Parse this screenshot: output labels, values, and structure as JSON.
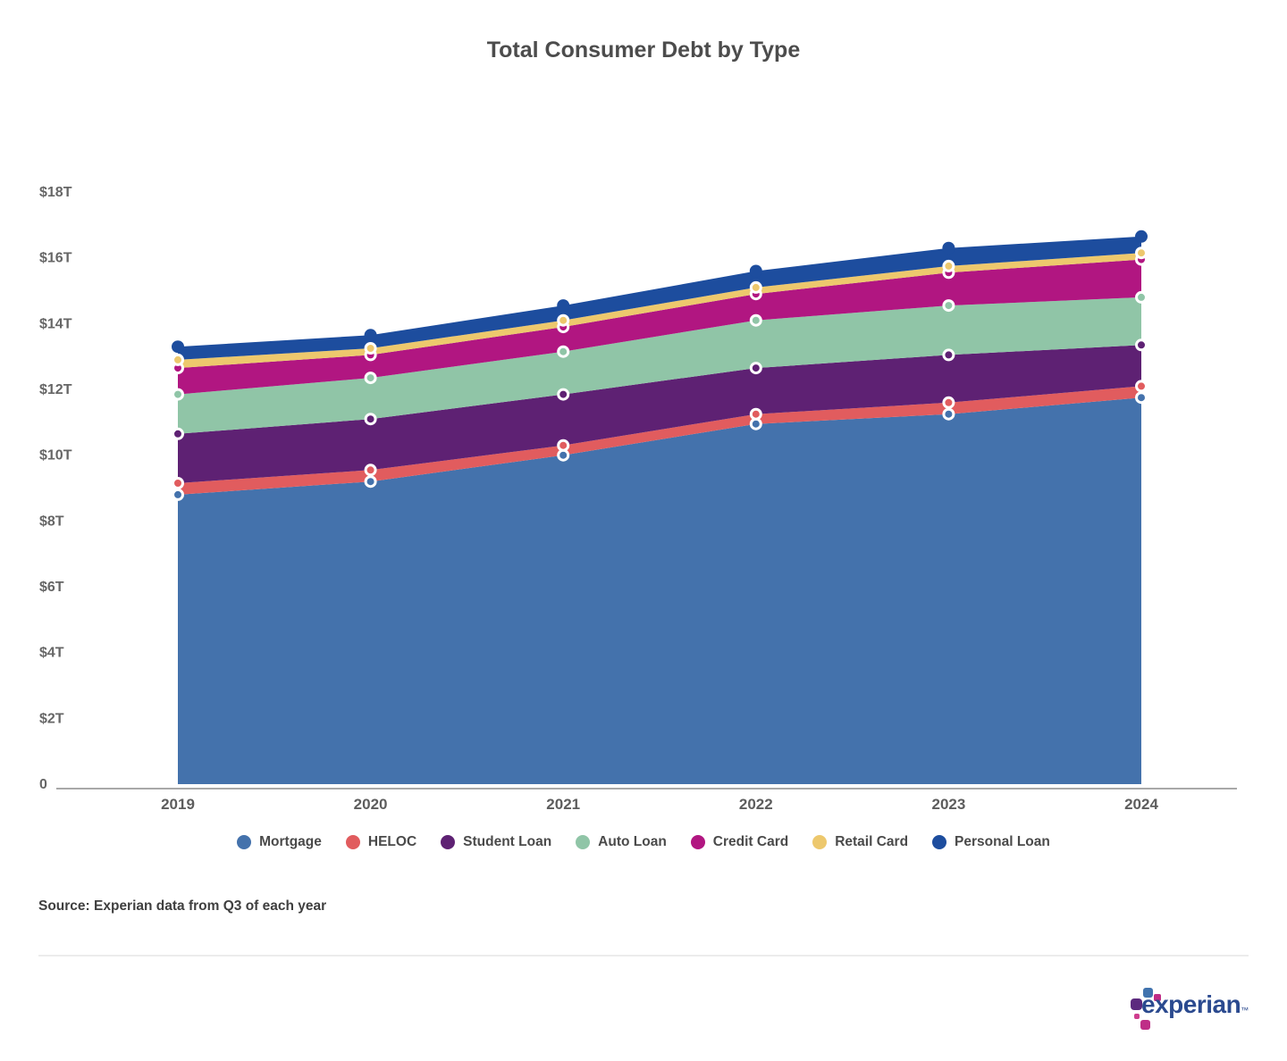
{
  "title": "Total Consumer Debt by Type",
  "source": "Source: Experian data from Q3 of each year",
  "logo": {
    "wordmark": "experian",
    "tm": "™"
  },
  "chart_data": {
    "type": "area",
    "stacked": true,
    "title": "Total Consumer Debt by Type",
    "xlabel": "",
    "ylabel": "",
    "x": [
      "2019",
      "2020",
      "2021",
      "2022",
      "2023",
      "2024"
    ],
    "series": [
      {
        "name": "Mortgage",
        "color": "#4472ac",
        "values": [
          8.8,
          9.2,
          10.0,
          10.95,
          11.25,
          11.75
        ]
      },
      {
        "name": "HELOC",
        "color": "#e15c5e",
        "values": [
          0.35,
          0.35,
          0.3,
          0.3,
          0.35,
          0.35
        ]
      },
      {
        "name": "Student Loan",
        "color": "#5e2173",
        "values": [
          1.5,
          1.55,
          1.55,
          1.4,
          1.45,
          1.25
        ]
      },
      {
        "name": "Auto Loan",
        "color": "#90c5a7",
        "values": [
          1.2,
          1.25,
          1.3,
          1.45,
          1.5,
          1.45
        ]
      },
      {
        "name": "Credit Card",
        "color": "#b11681",
        "values": [
          0.8,
          0.7,
          0.75,
          0.8,
          1.0,
          1.15
        ]
      },
      {
        "name": "Retail Card",
        "color": "#edc86d",
        "values": [
          0.25,
          0.2,
          0.2,
          0.2,
          0.2,
          0.2
        ]
      },
      {
        "name": "Personal Loan",
        "color": "#1d4d9e",
        "values": [
          0.4,
          0.4,
          0.45,
          0.5,
          0.55,
          0.5
        ]
      }
    ],
    "cumulative_totals": [
      13.3,
      13.65,
      14.55,
      15.6,
      16.3,
      16.65
    ],
    "yticks_labels": [
      "$18T",
      "$16T",
      "$14T",
      "$12T",
      "$10T",
      "$8T",
      "$6T",
      "$4T",
      "$2T",
      "0"
    ],
    "yticks_values": [
      18,
      16,
      14,
      12,
      10,
      8,
      6,
      4,
      2,
      0
    ],
    "ylim": [
      0,
      18
    ],
    "grid": false,
    "legend_position": "bottom"
  }
}
